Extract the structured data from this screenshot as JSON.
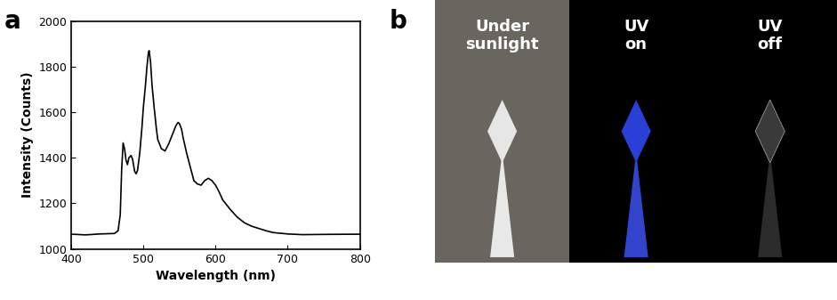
{
  "chart_data": {
    "type": "line",
    "title": "a",
    "xlabel": "Wavelength (nm)",
    "ylabel": "Intensity (Counts)",
    "x": [
      400,
      420,
      440,
      460,
      465,
      468,
      470,
      472,
      474,
      476,
      478,
      480,
      483,
      485,
      488,
      490,
      492,
      495,
      498,
      500,
      503,
      505,
      507,
      508,
      510,
      512,
      515,
      518,
      520,
      525,
      530,
      535,
      540,
      545,
      548,
      550,
      553,
      555,
      560,
      565,
      570,
      575,
      580,
      585,
      590,
      595,
      600,
      605,
      610,
      620,
      630,
      640,
      650,
      660,
      670,
      680,
      700,
      720,
      750,
      800
    ],
    "values": [
      1065,
      1062,
      1066,
      1068,
      1080,
      1150,
      1350,
      1465,
      1440,
      1390,
      1370,
      1400,
      1410,
      1395,
      1340,
      1330,
      1345,
      1420,
      1530,
      1620,
      1720,
      1800,
      1860,
      1870,
      1820,
      1720,
      1620,
      1530,
      1480,
      1440,
      1430,
      1460,
      1500,
      1540,
      1555,
      1550,
      1525,
      1490,
      1420,
      1360,
      1300,
      1285,
      1280,
      1300,
      1310,
      1300,
      1280,
      1250,
      1215,
      1175,
      1140,
      1115,
      1100,
      1090,
      1080,
      1072,
      1066,
      1063,
      1064,
      1065
    ],
    "color": "#000000",
    "xlim": [
      400,
      800
    ],
    "xticks": [
      400,
      500,
      600,
      700,
      800
    ],
    "ylim": [
      1000,
      2000
    ],
    "yticks": [
      1000,
      1200,
      1400,
      1600,
      1800,
      2000
    ]
  },
  "photos": {
    "title": "b",
    "captions": [
      "Under\nsunlight",
      "UV\non",
      "UV\noff"
    ]
  }
}
